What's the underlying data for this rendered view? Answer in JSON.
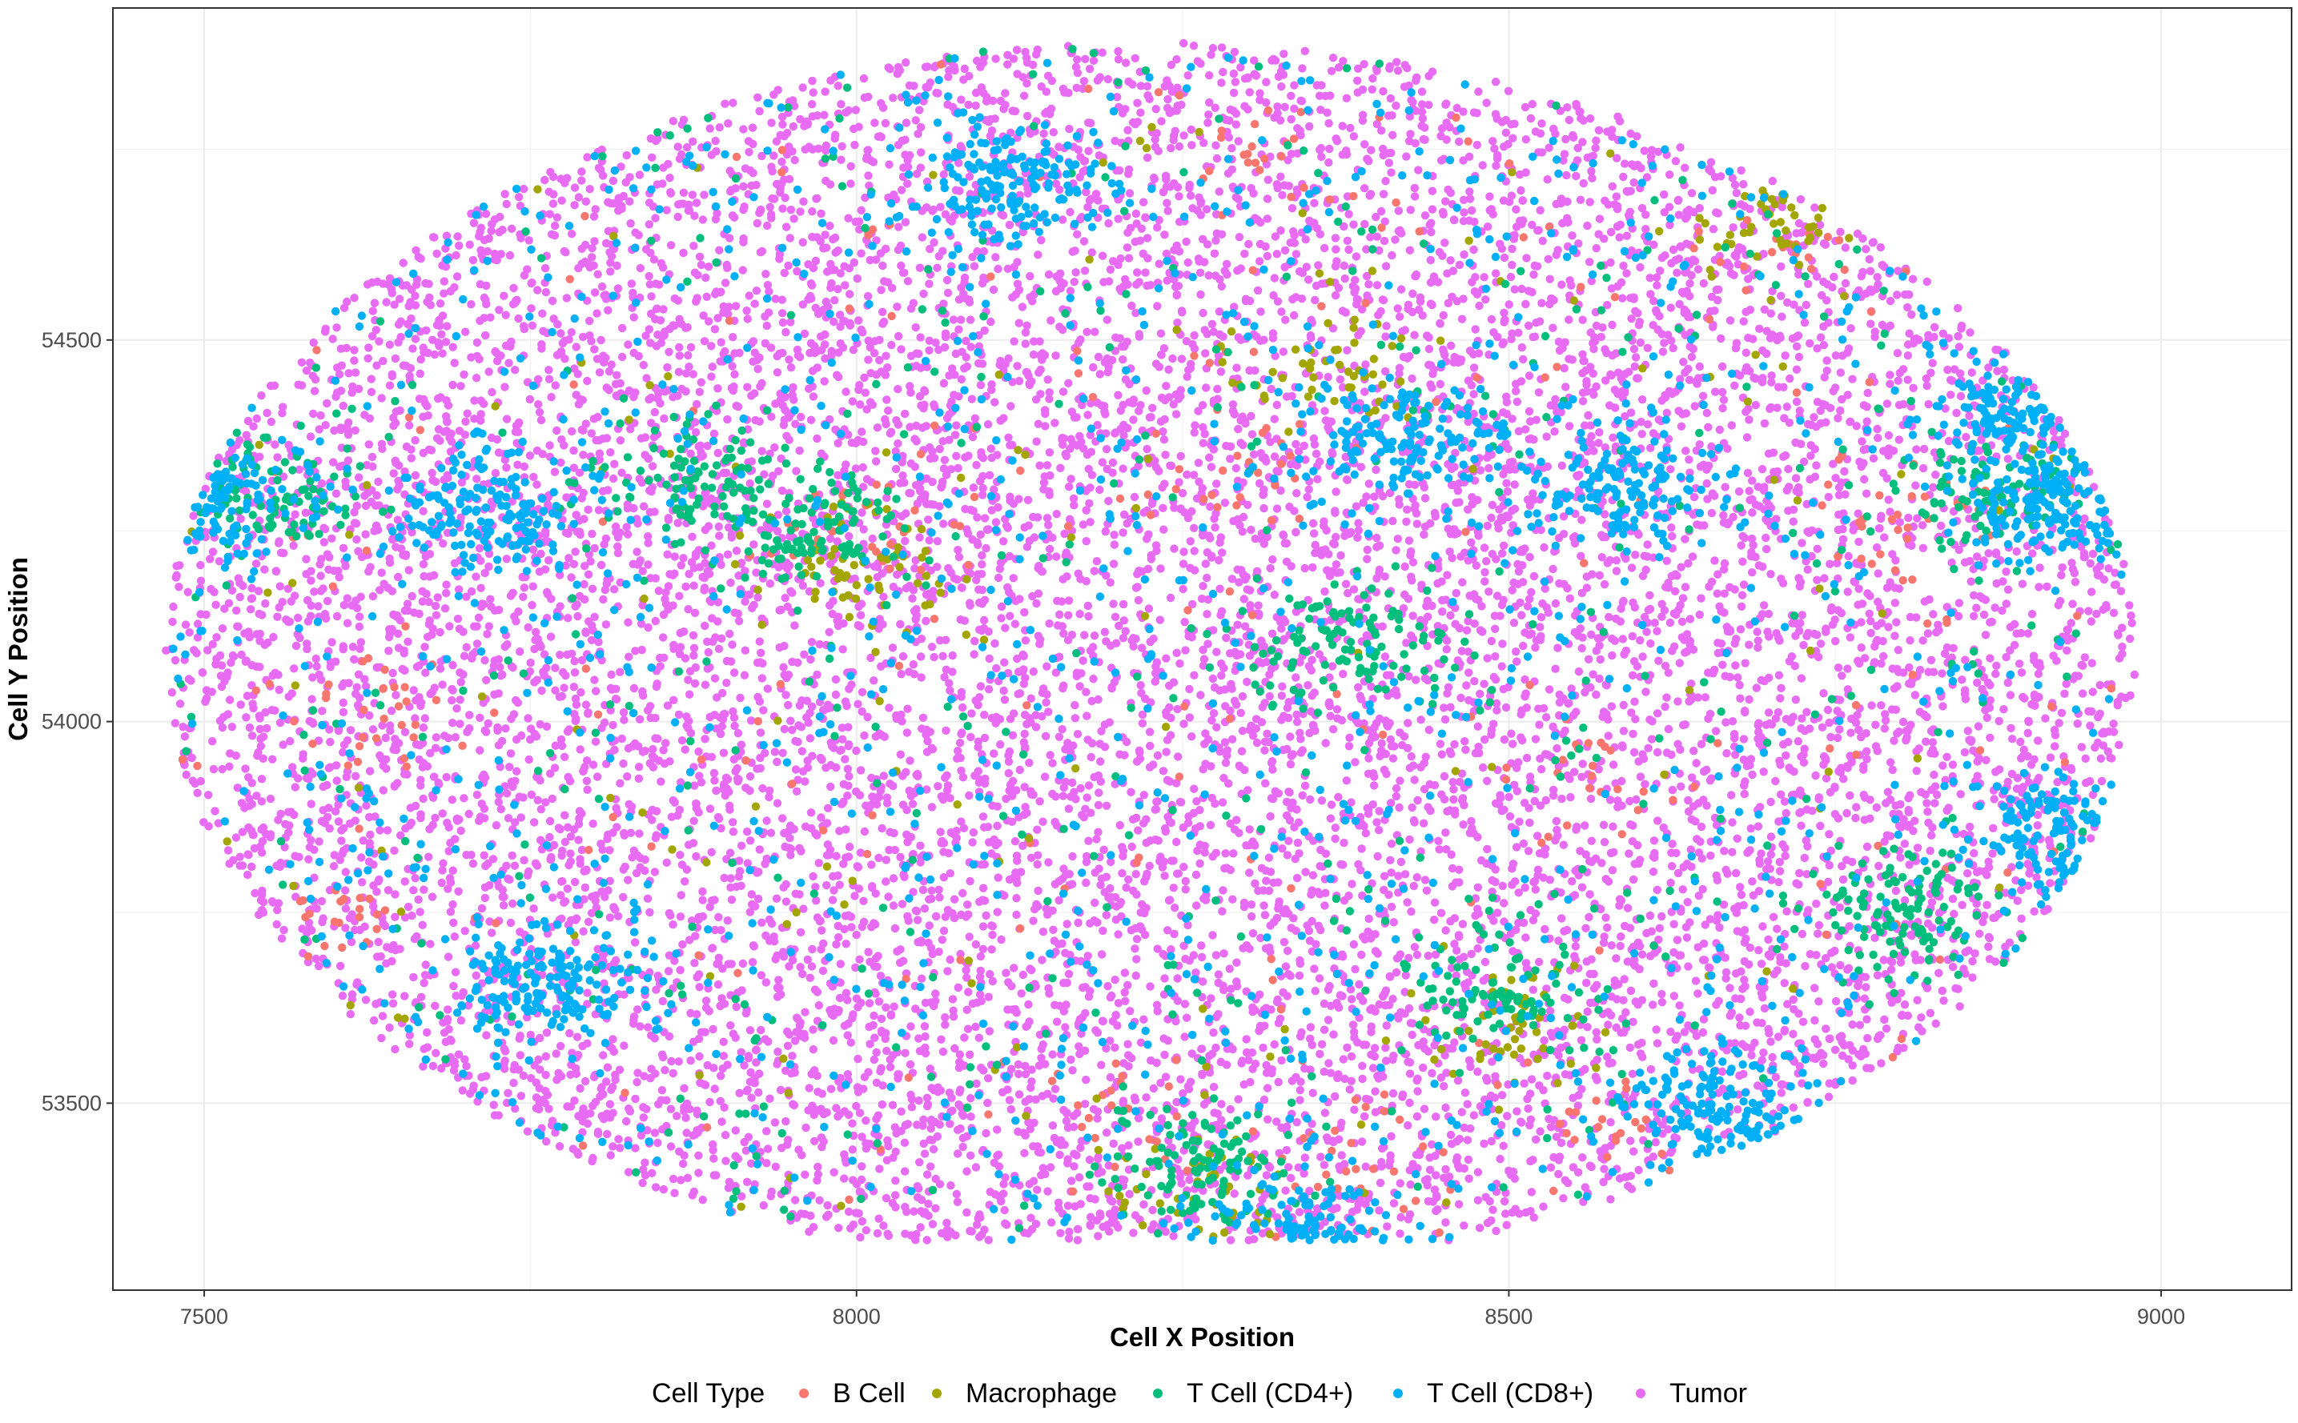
{
  "chart_data": {
    "type": "scatter",
    "title": "",
    "xlabel": "Cell X Position",
    "ylabel": "Cell Y Position",
    "xlim": [
      7430,
      9100
    ],
    "ylim": [
      53255,
      54935
    ],
    "x_ticks": [
      7500,
      8000,
      8500,
      9000
    ],
    "x_tick_labels": [
      "7500",
      "8000",
      "8500",
      "9000"
    ],
    "y_ticks": [
      53500,
      54000,
      54500
    ],
    "y_tick_labels": [
      "53500",
      "54000",
      "54500"
    ],
    "grid": true,
    "theme": "bw",
    "legend_position": "bottom",
    "legend_title": "Cell Type",
    "region": {
      "shape": "ellipse",
      "center": [
        8225,
        54085
      ],
      "radius_x": 755,
      "radius_y": 805,
      "y_extent": [
        53320,
        54890
      ],
      "x_extent": [
        7470,
        8985
      ]
    },
    "series": [
      {
        "name": "B Cell",
        "color": "#F8766D",
        "approx_count": 430,
        "cluster_centers": [
          [
            7630,
            54010
          ],
          [
            7610,
            53730
          ],
          [
            7990,
            54250
          ],
          [
            8300,
            54310
          ],
          [
            8810,
            54270
          ],
          [
            8720,
            54620
          ],
          [
            8560,
            53920
          ],
          [
            8200,
            53470
          ],
          [
            8580,
            53460
          ],
          [
            8390,
            53450
          ],
          [
            8330,
            54750
          ]
        ]
      },
      {
        "name": "Macrophage",
        "color": "#A3A500",
        "approx_count": 380,
        "cluster_centers": [
          [
            8000,
            54200
          ],
          [
            8350,
            54460
          ],
          [
            8260,
            53390
          ],
          [
            8500,
            53600
          ],
          [
            8700,
            54650
          ]
        ]
      },
      {
        "name": "T Cell (CD4+)",
        "color": "#00BF7D",
        "approx_count": 1300,
        "cluster_centers": [
          [
            7960,
            54250
          ],
          [
            8260,
            53420
          ],
          [
            8380,
            54100
          ],
          [
            8880,
            54300
          ],
          [
            8800,
            53750
          ],
          [
            7550,
            54300
          ],
          [
            7880,
            54320
          ],
          [
            8500,
            53650
          ]
        ]
      },
      {
        "name": "T Cell (CD8+)",
        "color": "#00B0F6",
        "approx_count": 2700,
        "cluster_centers": [
          [
            7500,
            54300
          ],
          [
            7720,
            54270
          ],
          [
            8900,
            54400
          ],
          [
            8920,
            54280
          ],
          [
            8930,
            53850
          ],
          [
            8350,
            53330
          ],
          [
            8430,
            54370
          ],
          [
            8660,
            53500
          ],
          [
            8580,
            54300
          ],
          [
            8120,
            54700
          ],
          [
            7760,
            53650
          ]
        ]
      },
      {
        "name": "Tumor",
        "color": "#E76BF3",
        "approx_count": 12000,
        "cluster_centers": []
      }
    ]
  }
}
